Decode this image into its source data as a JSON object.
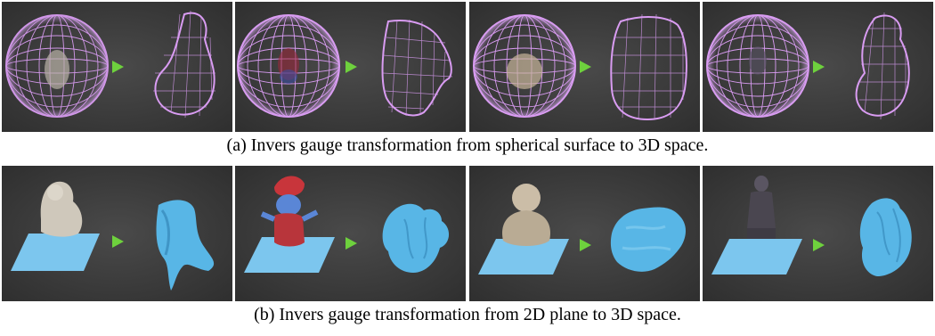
{
  "figure": {
    "captions": {
      "a": "(a) Invers gauge transformation from spherical surface to 3D space.",
      "b": "(b) Invers gauge transformation from 2D plane to 3D space."
    },
    "rows": {
      "a": {
        "panels": [
          {
            "object": "bear",
            "source": "wireframe-sphere",
            "target": "wireframe-mesh"
          },
          {
            "object": "smurf",
            "source": "wireframe-sphere",
            "target": "wireframe-mesh"
          },
          {
            "object": "buddha",
            "source": "wireframe-sphere",
            "target": "wireframe-mesh"
          },
          {
            "object": "statue",
            "source": "wireframe-sphere",
            "target": "wireframe-mesh"
          }
        ]
      },
      "b": {
        "panels": [
          {
            "object": "bear",
            "source": "blue-plane",
            "target": "blue-mesh"
          },
          {
            "object": "smurf",
            "source": "blue-plane",
            "target": "blue-mesh"
          },
          {
            "object": "buddha",
            "source": "blue-plane",
            "target": "blue-mesh"
          },
          {
            "object": "statue",
            "source": "blue-plane",
            "target": "blue-mesh"
          }
        ]
      }
    },
    "colors": {
      "background": "#3b3b3b",
      "wireframe": "#d99cf2",
      "plane": "#7cc6ee",
      "mesh": "#58b6e6",
      "arrow": "#6ed13d"
    },
    "icons": [
      "right-arrow-icon"
    ]
  }
}
